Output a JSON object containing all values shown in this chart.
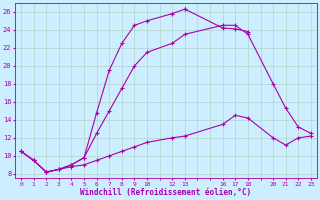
{
  "background_color": "#cceeff",
  "grid_color": "#aaccbb",
  "line_color": "#aa00aa",
  "xlabel": "Windchill (Refroidissement éolien,°C)",
  "xlim": [
    -0.5,
    23.5
  ],
  "ylim": [
    7.5,
    27
  ],
  "yticks": [
    8,
    10,
    12,
    14,
    16,
    18,
    20,
    22,
    24,
    26
  ],
  "xtick_positions": [
    0,
    1,
    2,
    3,
    4,
    5,
    6,
    7,
    8,
    9,
    10,
    12,
    13,
    16,
    17,
    18,
    20,
    21,
    22,
    23
  ],
  "xtick_labels": [
    "0",
    "1",
    "2",
    "3",
    "4",
    "5",
    "6",
    "7",
    "8",
    "9",
    "10",
    "12",
    "13",
    "16",
    "17",
    "18",
    "20",
    "21",
    "22",
    "23"
  ],
  "curve1_x": [
    0,
    1,
    2,
    3,
    4,
    5,
    6,
    7,
    8,
    9,
    10,
    12,
    13
  ],
  "curve1_y": [
    10.5,
    9.5,
    8.2,
    8.5,
    9.0,
    9.8,
    14.8,
    19.5,
    22.5,
    24.5,
    25.0,
    25.8,
    26.3
  ],
  "curve2_x": [
    13,
    16,
    17,
    18
  ],
  "curve2_y": [
    26.3,
    24.2,
    24.1,
    23.8
  ],
  "curve3_x": [
    0,
    1,
    2,
    3,
    4,
    5,
    6,
    7,
    8,
    9,
    10,
    12,
    13,
    16,
    17,
    18,
    20,
    21,
    22,
    23
  ],
  "curve3_y": [
    10.5,
    9.5,
    8.2,
    8.5,
    9.0,
    9.8,
    12.5,
    15.0,
    17.5,
    20.0,
    21.5,
    22.5,
    23.5,
    24.5,
    24.5,
    23.5,
    18.0,
    15.3,
    13.2,
    12.5
  ],
  "curve4_x": [
    0,
    1,
    2,
    3,
    4,
    5,
    6,
    7,
    8,
    9,
    10,
    12,
    13,
    16,
    17,
    18,
    20,
    21,
    22,
    23
  ],
  "curve4_y": [
    10.5,
    9.5,
    8.2,
    8.5,
    8.8,
    9.0,
    9.5,
    10.0,
    10.5,
    11.0,
    11.5,
    12.0,
    12.2,
    13.5,
    14.5,
    14.2,
    12.0,
    11.2,
    12.0,
    12.2
  ]
}
